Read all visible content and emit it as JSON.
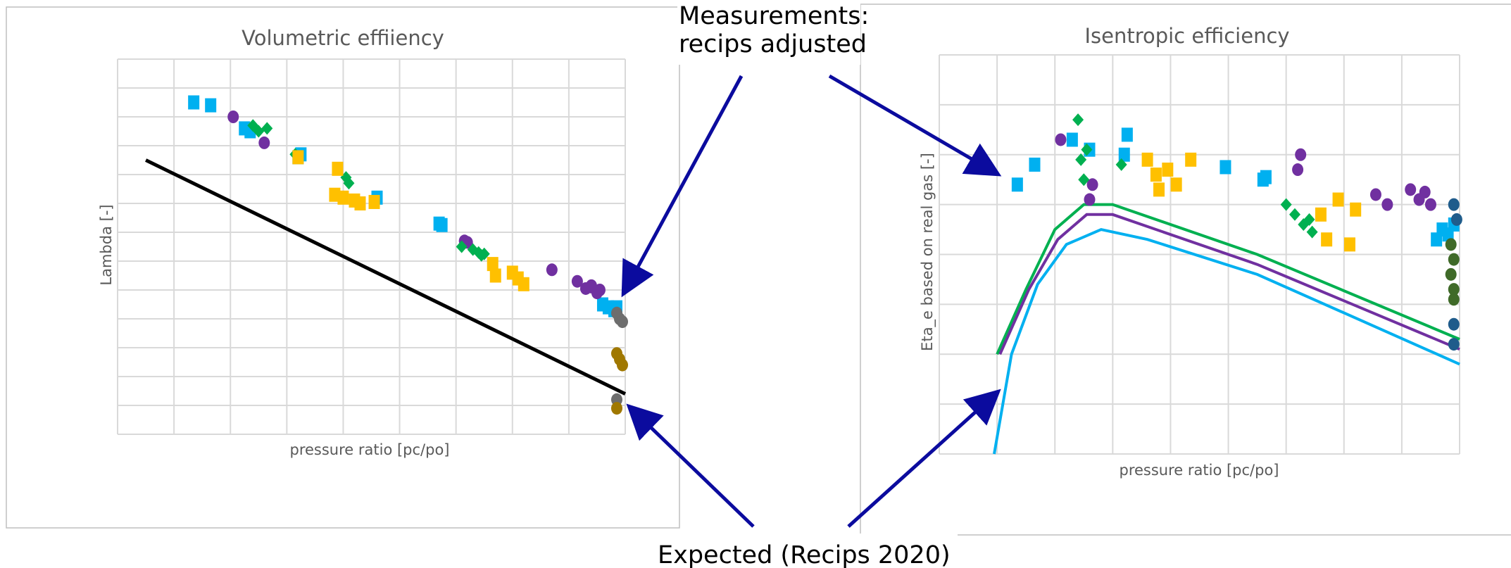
{
  "colors": {
    "arrow": "#0b0b9e",
    "grid": "#d9d9d9",
    "text": "#595959",
    "blue": "#00b0f0",
    "green": "#00b050",
    "purple": "#7030a0",
    "yellow": "#ffc000",
    "gray": "#6d6d6d",
    "olive": "#a07800",
    "darkgreen": "#3f6a28",
    "darkblue": "#1f5c8b",
    "black": "#000000"
  },
  "annotations": {
    "measurements_line1": "Measurements:",
    "measurements_line2": "recips adjusted",
    "expected": "Expected (Recips 2020)"
  },
  "chart_data": [
    {
      "type": "scatter",
      "title": "Volumetric effiiency",
      "xlabel": "pressure ratio  [pc/po]",
      "ylabel": "Lambda  [-]",
      "xlim": [
        0,
        9
      ],
      "ylim": [
        0,
        13
      ],
      "grid": true,
      "tick_labels_shown": false,
      "series": [
        {
          "color": "blue",
          "marker": "square",
          "points": [
            [
              1.35,
              11.5
            ],
            [
              1.65,
              11.4
            ],
            [
              2.25,
              10.6
            ],
            [
              2.35,
              10.5
            ],
            [
              3.2,
              9.6
            ],
            [
              3.25,
              9.7
            ],
            [
              4.6,
              8.2
            ],
            [
              5.7,
              7.3
            ],
            [
              5.75,
              7.25
            ],
            [
              8.6,
              4.5
            ],
            [
              8.7,
              4.4
            ],
            [
              8.8,
              4.3
            ],
            [
              8.85,
              4.4
            ]
          ]
        },
        {
          "color": "purple",
          "marker": "circle",
          "points": [
            [
              2.05,
              11.0
            ],
            [
              2.6,
              10.1
            ],
            [
              6.15,
              6.7
            ],
            [
              6.2,
              6.65
            ],
            [
              7.7,
              5.7
            ],
            [
              8.15,
              5.3
            ],
            [
              8.3,
              5.05
            ],
            [
              8.4,
              5.15
            ],
            [
              8.5,
              4.9
            ],
            [
              8.55,
              5.0
            ],
            [
              8.4,
              5.1
            ]
          ]
        },
        {
          "color": "green",
          "marker": "diamond",
          "points": [
            [
              2.4,
              10.7
            ],
            [
              2.5,
              10.5
            ],
            [
              2.65,
              10.6
            ],
            [
              6.1,
              6.5
            ],
            [
              6.3,
              6.4
            ],
            [
              6.4,
              6.3
            ],
            [
              6.45,
              6.2
            ],
            [
              6.5,
              6.25
            ],
            [
              4.05,
              8.9
            ],
            [
              4.1,
              8.7
            ],
            [
              3.15,
              9.7
            ]
          ]
        },
        {
          "color": "yellow",
          "marker": "square",
          "points": [
            [
              3.2,
              9.6
            ],
            [
              3.9,
              9.2
            ],
            [
              3.85,
              8.3
            ],
            [
              4.0,
              8.2
            ],
            [
              4.2,
              8.1
            ],
            [
              4.3,
              8.0
            ],
            [
              4.55,
              8.05
            ],
            [
              6.65,
              5.9
            ],
            [
              6.7,
              5.5
            ],
            [
              7.0,
              5.6
            ],
            [
              7.1,
              5.4
            ],
            [
              7.2,
              5.2
            ]
          ]
        },
        {
          "color": "gray",
          "marker": "circle",
          "points": [
            [
              8.85,
              4.2
            ],
            [
              8.9,
              4.0
            ],
            [
              8.95,
              3.9
            ],
            [
              8.85,
              1.2
            ]
          ]
        },
        {
          "color": "olive",
          "marker": "circle",
          "points": [
            [
              8.85,
              2.8
            ],
            [
              8.9,
              2.6
            ],
            [
              8.95,
              2.4
            ],
            [
              8.85,
              0.9
            ]
          ]
        }
      ],
      "expected_line": {
        "name": "Expected (Recips 2020)",
        "color": "black",
        "points": [
          [
            0.5,
            9.5
          ],
          [
            9.0,
            1.4
          ]
        ]
      }
    },
    {
      "type": "line",
      "title": "Isentropic efficiency",
      "xlabel": "pressure ratio  [pc/po]",
      "ylabel": "Eta_e based on real gas  [-]",
      "xlim": [
        0,
        9
      ],
      "ylim": [
        0,
        8
      ],
      "grid": true,
      "tick_labels_shown": false,
      "series": [
        {
          "color": "blue",
          "marker": "square",
          "points": [
            [
              1.35,
              5.4
            ],
            [
              1.65,
              5.8
            ],
            [
              2.3,
              6.3
            ],
            [
              2.6,
              6.1
            ],
            [
              3.2,
              6.0
            ],
            [
              3.25,
              6.4
            ],
            [
              4.95,
              5.75
            ],
            [
              5.6,
              5.5
            ],
            [
              5.65,
              5.55
            ],
            [
              8.6,
              4.3
            ],
            [
              8.7,
              4.5
            ],
            [
              8.8,
              4.4
            ],
            [
              8.9,
              4.6
            ]
          ]
        },
        {
          "color": "purple",
          "marker": "circle",
          "points": [
            [
              2.1,
              6.3
            ],
            [
              2.6,
              5.1
            ],
            [
              2.65,
              5.4
            ],
            [
              6.2,
              5.7
            ],
            [
              6.25,
              6.0
            ],
            [
              7.55,
              5.2
            ],
            [
              7.75,
              5.0
            ],
            [
              8.15,
              5.3
            ],
            [
              8.3,
              5.1
            ],
            [
              8.4,
              5.25
            ],
            [
              8.5,
              5.0
            ]
          ]
        },
        {
          "color": "green",
          "marker": "diamond",
          "points": [
            [
              2.4,
              6.7
            ],
            [
              2.45,
              5.9
            ],
            [
              2.5,
              5.5
            ],
            [
              2.55,
              6.1
            ],
            [
              3.15,
              5.8
            ],
            [
              6.0,
              5.0
            ],
            [
              6.15,
              4.8
            ],
            [
              6.3,
              4.6
            ],
            [
              6.4,
              4.7
            ],
            [
              6.45,
              4.45
            ]
          ]
        },
        {
          "color": "yellow",
          "marker": "square",
          "points": [
            [
              3.6,
              5.9
            ],
            [
              3.75,
              5.6
            ],
            [
              3.8,
              5.3
            ],
            [
              3.95,
              5.7
            ],
            [
              4.1,
              5.4
            ],
            [
              4.35,
              5.9
            ],
            [
              6.6,
              4.8
            ],
            [
              6.7,
              4.3
            ],
            [
              6.9,
              5.1
            ],
            [
              7.1,
              4.2
            ],
            [
              7.2,
              4.9
            ]
          ]
        },
        {
          "color": "darkgreen",
          "marker": "circle",
          "points": [
            [
              8.85,
              4.2
            ],
            [
              8.9,
              3.9
            ],
            [
              8.85,
              3.6
            ],
            [
              8.9,
              3.3
            ],
            [
              8.9,
              3.1
            ]
          ]
        },
        {
          "color": "darkblue",
          "marker": "circle",
          "points": [
            [
              8.9,
              5.0
            ],
            [
              8.95,
              4.7
            ],
            [
              8.9,
              2.6
            ],
            [
              8.9,
              2.2
            ]
          ]
        }
      ],
      "expected_curves": [
        {
          "color": "green",
          "points": [
            [
              1.0,
              2.0
            ],
            [
              1.5,
              3.3
            ],
            [
              2.0,
              4.5
            ],
            [
              2.5,
              5.0
            ],
            [
              3.0,
              5.0
            ],
            [
              5.5,
              4.0
            ],
            [
              9.0,
              2.3
            ]
          ]
        },
        {
          "color": "purple",
          "points": [
            [
              1.05,
              2.0
            ],
            [
              1.55,
              3.3
            ],
            [
              2.05,
              4.3
            ],
            [
              2.55,
              4.8
            ],
            [
              3.0,
              4.8
            ],
            [
              5.5,
              3.8
            ],
            [
              9.0,
              2.1
            ]
          ]
        },
        {
          "color": "blue",
          "points": [
            [
              0.95,
              0.0
            ],
            [
              1.25,
              2.0
            ],
            [
              1.7,
              3.4
            ],
            [
              2.2,
              4.2
            ],
            [
              2.8,
              4.5
            ],
            [
              3.6,
              4.3
            ],
            [
              5.5,
              3.6
            ],
            [
              9.0,
              1.8
            ]
          ]
        }
      ]
    }
  ]
}
